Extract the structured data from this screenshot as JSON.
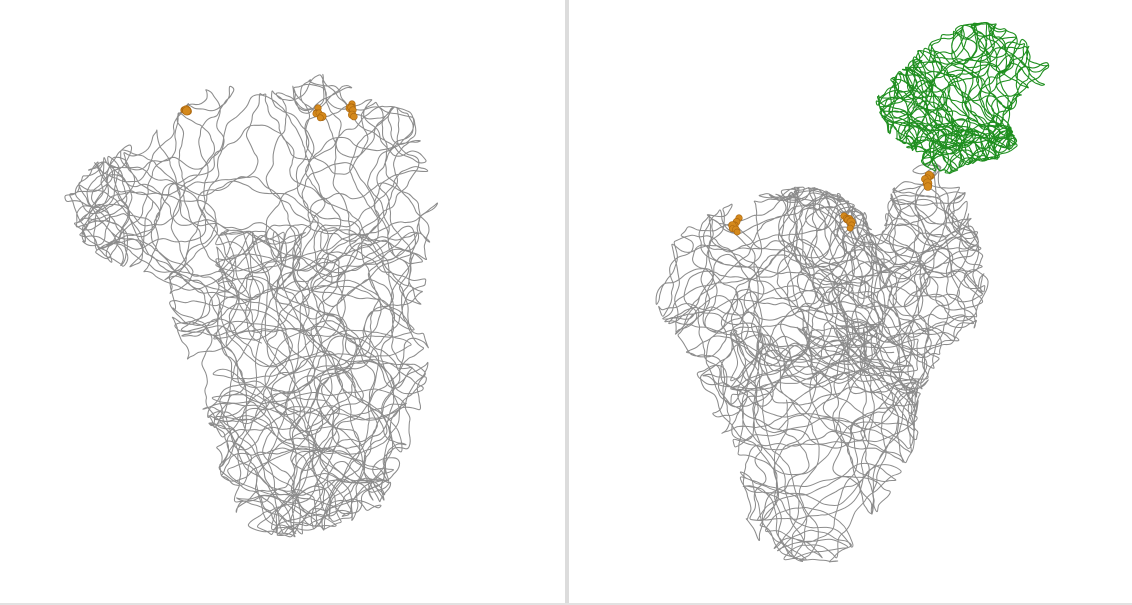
{
  "viewer": {
    "left_panel": {
      "structure": "protein-trimer",
      "backbone_color": "#8c8c8c",
      "highlight_color": "#d4891c",
      "highlight_clusters": 3
    },
    "right_panel": {
      "structure": "protein-trimer-with-bound-partner",
      "backbone_color": "#8c8c8c",
      "highlight_color": "#d4891c",
      "partner_color": "#1f8f1f",
      "highlight_clusters": 3
    },
    "divider_color": "#dcdcdc",
    "background": "#ffffff"
  }
}
